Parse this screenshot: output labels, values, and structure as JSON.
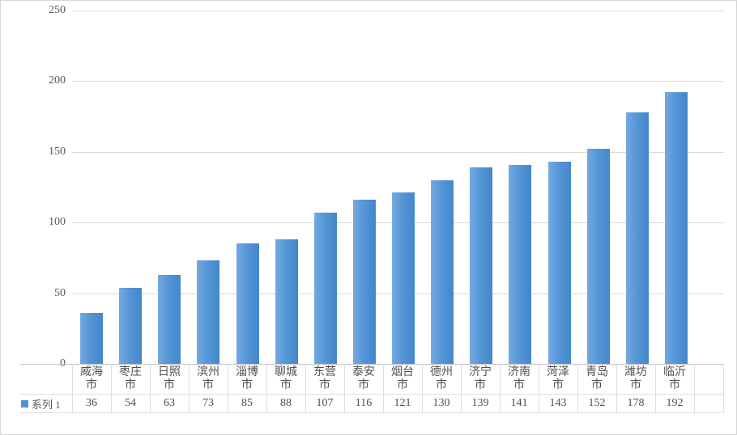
{
  "chart_data": {
    "type": "bar",
    "title": "",
    "categories": [
      "威海市",
      "枣庄市",
      "日照市",
      "滨州市",
      "淄博市",
      "聊城市",
      "东营市",
      "泰安市",
      "烟台市",
      "德州市",
      "济宁市",
      "济南市",
      "菏泽市",
      "青岛市",
      "潍坊市",
      "临沂市"
    ],
    "series": [
      {
        "name": "系列 1",
        "values": [
          36,
          54,
          63,
          73,
          85,
          88,
          107,
          116,
          121,
          130,
          139,
          141,
          143,
          152,
          178,
          192
        ]
      }
    ],
    "yticks": [
      0,
      50,
      100,
      150,
      200,
      250
    ],
    "ylim": [
      0,
      250
    ],
    "grid": true,
    "legend_position": "data-table-left",
    "show_data_table": true,
    "bar_color_light": "#74aadf",
    "bar_color_dark": "#4387ca",
    "legend_swatch_color": "#4e93d4",
    "gridline_color": "#dadada",
    "axis_text_color": "#595959"
  }
}
